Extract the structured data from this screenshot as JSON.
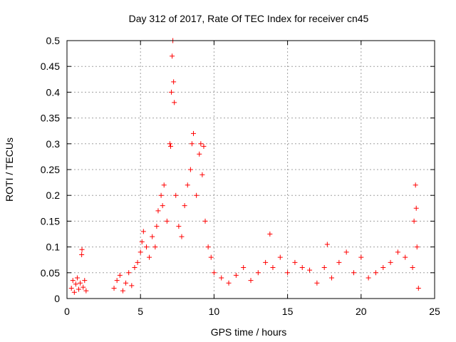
{
  "chart_data": {
    "type": "scatter",
    "title": "Day 312 of 2017, Rate Of TEC Index for receiver cn45",
    "xlabel": "GPS time / hours",
    "ylabel": "ROTI / TECUs",
    "xlim": [
      0,
      25
    ],
    "ylim": [
      0,
      0.5
    ],
    "x_ticks": [
      0,
      5,
      10,
      15,
      20,
      25
    ],
    "x_tick_labels": [
      "0",
      "5",
      "10",
      "15",
      "20",
      "25"
    ],
    "y_ticks": [
      0,
      0.05,
      0.1,
      0.15,
      0.2,
      0.25,
      0.3,
      0.35,
      0.4,
      0.45,
      0.5
    ],
    "y_tick_labels": [
      "0",
      "0.05",
      "0.1",
      "0.15",
      "0.2",
      "0.25",
      "0.3",
      "0.35",
      "0.4",
      "0.45",
      "0.5"
    ],
    "grid": true,
    "marker": "plus",
    "marker_color": "#ff0000",
    "points": [
      {
        "x": 0.3,
        "y": 0.02
      },
      {
        "x": 0.4,
        "y": 0.035
      },
      {
        "x": 0.5,
        "y": 0.012
      },
      {
        "x": 0.6,
        "y": 0.028
      },
      {
        "x": 0.7,
        "y": 0.04
      },
      {
        "x": 0.8,
        "y": 0.018
      },
      {
        "x": 0.9,
        "y": 0.03
      },
      {
        "x": 1.0,
        "y": 0.085
      },
      {
        "x": 1.02,
        "y": 0.095
      },
      {
        "x": 1.1,
        "y": 0.022
      },
      {
        "x": 1.2,
        "y": 0.035
      },
      {
        "x": 1.3,
        "y": 0.015
      },
      {
        "x": 3.2,
        "y": 0.02
      },
      {
        "x": 3.4,
        "y": 0.035
      },
      {
        "x": 3.6,
        "y": 0.045
      },
      {
        "x": 3.8,
        "y": 0.015
      },
      {
        "x": 4.0,
        "y": 0.03
      },
      {
        "x": 4.2,
        "y": 0.05
      },
      {
        "x": 4.4,
        "y": 0.025
      },
      {
        "x": 4.6,
        "y": 0.06
      },
      {
        "x": 4.8,
        "y": 0.07
      },
      {
        "x": 5.0,
        "y": 0.09
      },
      {
        "x": 5.1,
        "y": 0.11
      },
      {
        "x": 5.2,
        "y": 0.13
      },
      {
        "x": 5.4,
        "y": 0.1
      },
      {
        "x": 5.6,
        "y": 0.08
      },
      {
        "x": 5.8,
        "y": 0.12
      },
      {
        "x": 6.0,
        "y": 0.1
      },
      {
        "x": 6.1,
        "y": 0.14
      },
      {
        "x": 6.2,
        "y": 0.17
      },
      {
        "x": 6.4,
        "y": 0.2
      },
      {
        "x": 6.5,
        "y": 0.18
      },
      {
        "x": 6.6,
        "y": 0.22
      },
      {
        "x": 6.8,
        "y": 0.15
      },
      {
        "x": 7.0,
        "y": 0.3
      },
      {
        "x": 7.05,
        "y": 0.295
      },
      {
        "x": 7.1,
        "y": 0.4
      },
      {
        "x": 7.15,
        "y": 0.47
      },
      {
        "x": 7.2,
        "y": 0.5
      },
      {
        "x": 7.25,
        "y": 0.42
      },
      {
        "x": 7.3,
        "y": 0.38
      },
      {
        "x": 7.4,
        "y": 0.2
      },
      {
        "x": 7.6,
        "y": 0.14
      },
      {
        "x": 7.8,
        "y": 0.12
      },
      {
        "x": 8.0,
        "y": 0.18
      },
      {
        "x": 8.2,
        "y": 0.22
      },
      {
        "x": 8.4,
        "y": 0.25
      },
      {
        "x": 8.5,
        "y": 0.3
      },
      {
        "x": 8.6,
        "y": 0.32
      },
      {
        "x": 8.8,
        "y": 0.2
      },
      {
        "x": 9.0,
        "y": 0.28
      },
      {
        "x": 9.1,
        "y": 0.3
      },
      {
        "x": 9.2,
        "y": 0.24
      },
      {
        "x": 9.3,
        "y": 0.295
      },
      {
        "x": 9.4,
        "y": 0.15
      },
      {
        "x": 9.6,
        "y": 0.1
      },
      {
        "x": 9.8,
        "y": 0.08
      },
      {
        "x": 10.0,
        "y": 0.05
      },
      {
        "x": 10.5,
        "y": 0.04
      },
      {
        "x": 11.0,
        "y": 0.03
      },
      {
        "x": 11.5,
        "y": 0.045
      },
      {
        "x": 12.0,
        "y": 0.06
      },
      {
        "x": 12.5,
        "y": 0.035
      },
      {
        "x": 13.0,
        "y": 0.05
      },
      {
        "x": 13.5,
        "y": 0.07
      },
      {
        "x": 13.8,
        "y": 0.125
      },
      {
        "x": 14.0,
        "y": 0.06
      },
      {
        "x": 14.5,
        "y": 0.08
      },
      {
        "x": 15.0,
        "y": 0.05
      },
      {
        "x": 15.5,
        "y": 0.07
      },
      {
        "x": 16.0,
        "y": 0.06
      },
      {
        "x": 16.5,
        "y": 0.055
      },
      {
        "x": 17.0,
        "y": 0.03
      },
      {
        "x": 17.5,
        "y": 0.06
      },
      {
        "x": 17.7,
        "y": 0.105
      },
      {
        "x": 18.0,
        "y": 0.04
      },
      {
        "x": 18.5,
        "y": 0.07
      },
      {
        "x": 19.0,
        "y": 0.09
      },
      {
        "x": 19.5,
        "y": 0.05
      },
      {
        "x": 20.0,
        "y": 0.08
      },
      {
        "x": 20.5,
        "y": 0.04
      },
      {
        "x": 21.0,
        "y": 0.05
      },
      {
        "x": 21.5,
        "y": 0.06
      },
      {
        "x": 22.0,
        "y": 0.07
      },
      {
        "x": 22.5,
        "y": 0.09
      },
      {
        "x": 23.0,
        "y": 0.08
      },
      {
        "x": 23.5,
        "y": 0.06
      },
      {
        "x": 23.6,
        "y": 0.15
      },
      {
        "x": 23.7,
        "y": 0.22
      },
      {
        "x": 23.75,
        "y": 0.175
      },
      {
        "x": 23.8,
        "y": 0.1
      },
      {
        "x": 23.9,
        "y": 0.02
      }
    ]
  }
}
